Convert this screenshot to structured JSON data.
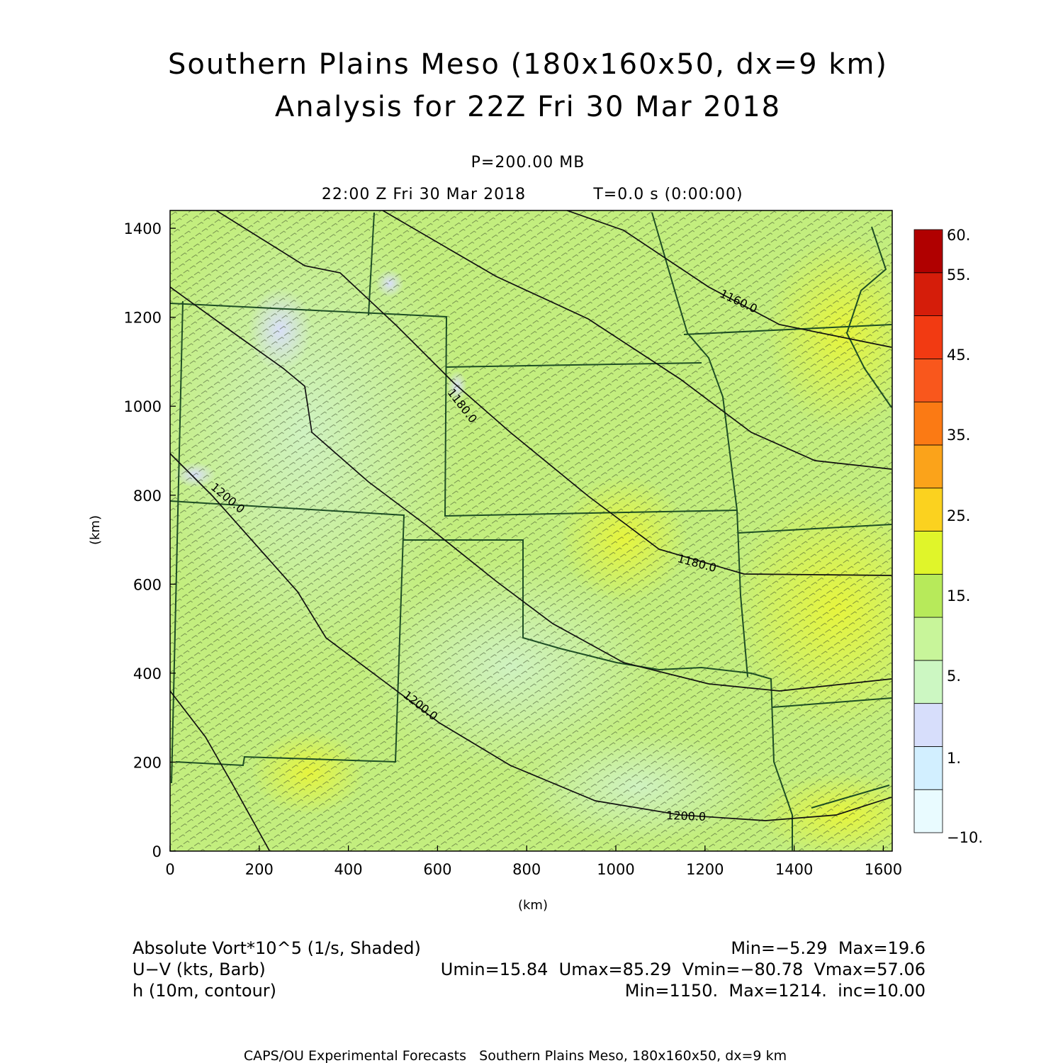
{
  "chart_data": {
    "type": "heatmap",
    "title": "Southern Plains Meso (180x160x50, dx=9 km)",
    "subtitle": "Analysis for 22Z Fri 30 Mar 2018",
    "level": "P=200.00 MB",
    "valid_time": "22:00 Z Fri 30 Mar 2018",
    "forecast_time": "T=0.0 s (0:00:00)",
    "xlabel": "(km)",
    "ylabel": "(km)",
    "xlim": [
      0,
      1620
    ],
    "ylim": [
      0,
      1440
    ],
    "x_ticks": [
      "0",
      "200",
      "400",
      "600",
      "800",
      "1000",
      "1200",
      "1400",
      "1600"
    ],
    "y_ticks": [
      "0",
      "200",
      "400",
      "600",
      "800",
      "1000",
      "1200",
      "1400"
    ],
    "colorbar": {
      "tick_labels": [
        "60.",
        "55.",
        "45.",
        "35.",
        "25.",
        "15.",
        "5.",
        "1.",
        "−10."
      ],
      "colors": [
        "#e9fbff",
        "#d2efff",
        "#d7defb",
        "#ccf7c2",
        "#c8f59a",
        "#b7ea5a",
        "#e0f52a",
        "#fbd21f",
        "#fba31a",
        "#fb7a14",
        "#f9571c",
        "#f23a12",
        "#d51d0a",
        "#b00000"
      ]
    },
    "contour_labels": [
      "1160.0",
      "1180.0",
      "1180.0",
      "1200.0",
      "1200.0",
      "1200.0"
    ],
    "fields": [
      {
        "name": "Absolute Vort*10^5 (1/s, Shaded)",
        "stats": "Min=−5.29  Max=19.6"
      },
      {
        "name": "U−V (kts, Barb)",
        "stats": "Umin=15.84  Umax=85.29  Vmin=−80.78  Vmax=57.06"
      },
      {
        "name": "h (10m, contour)",
        "stats": "Min=1150.  Max=1214.  inc=10.00"
      }
    ],
    "footer": "CAPS/OU Experimental Forecasts   Southern Plains Meso, 180x160x50, dx=9 km"
  }
}
